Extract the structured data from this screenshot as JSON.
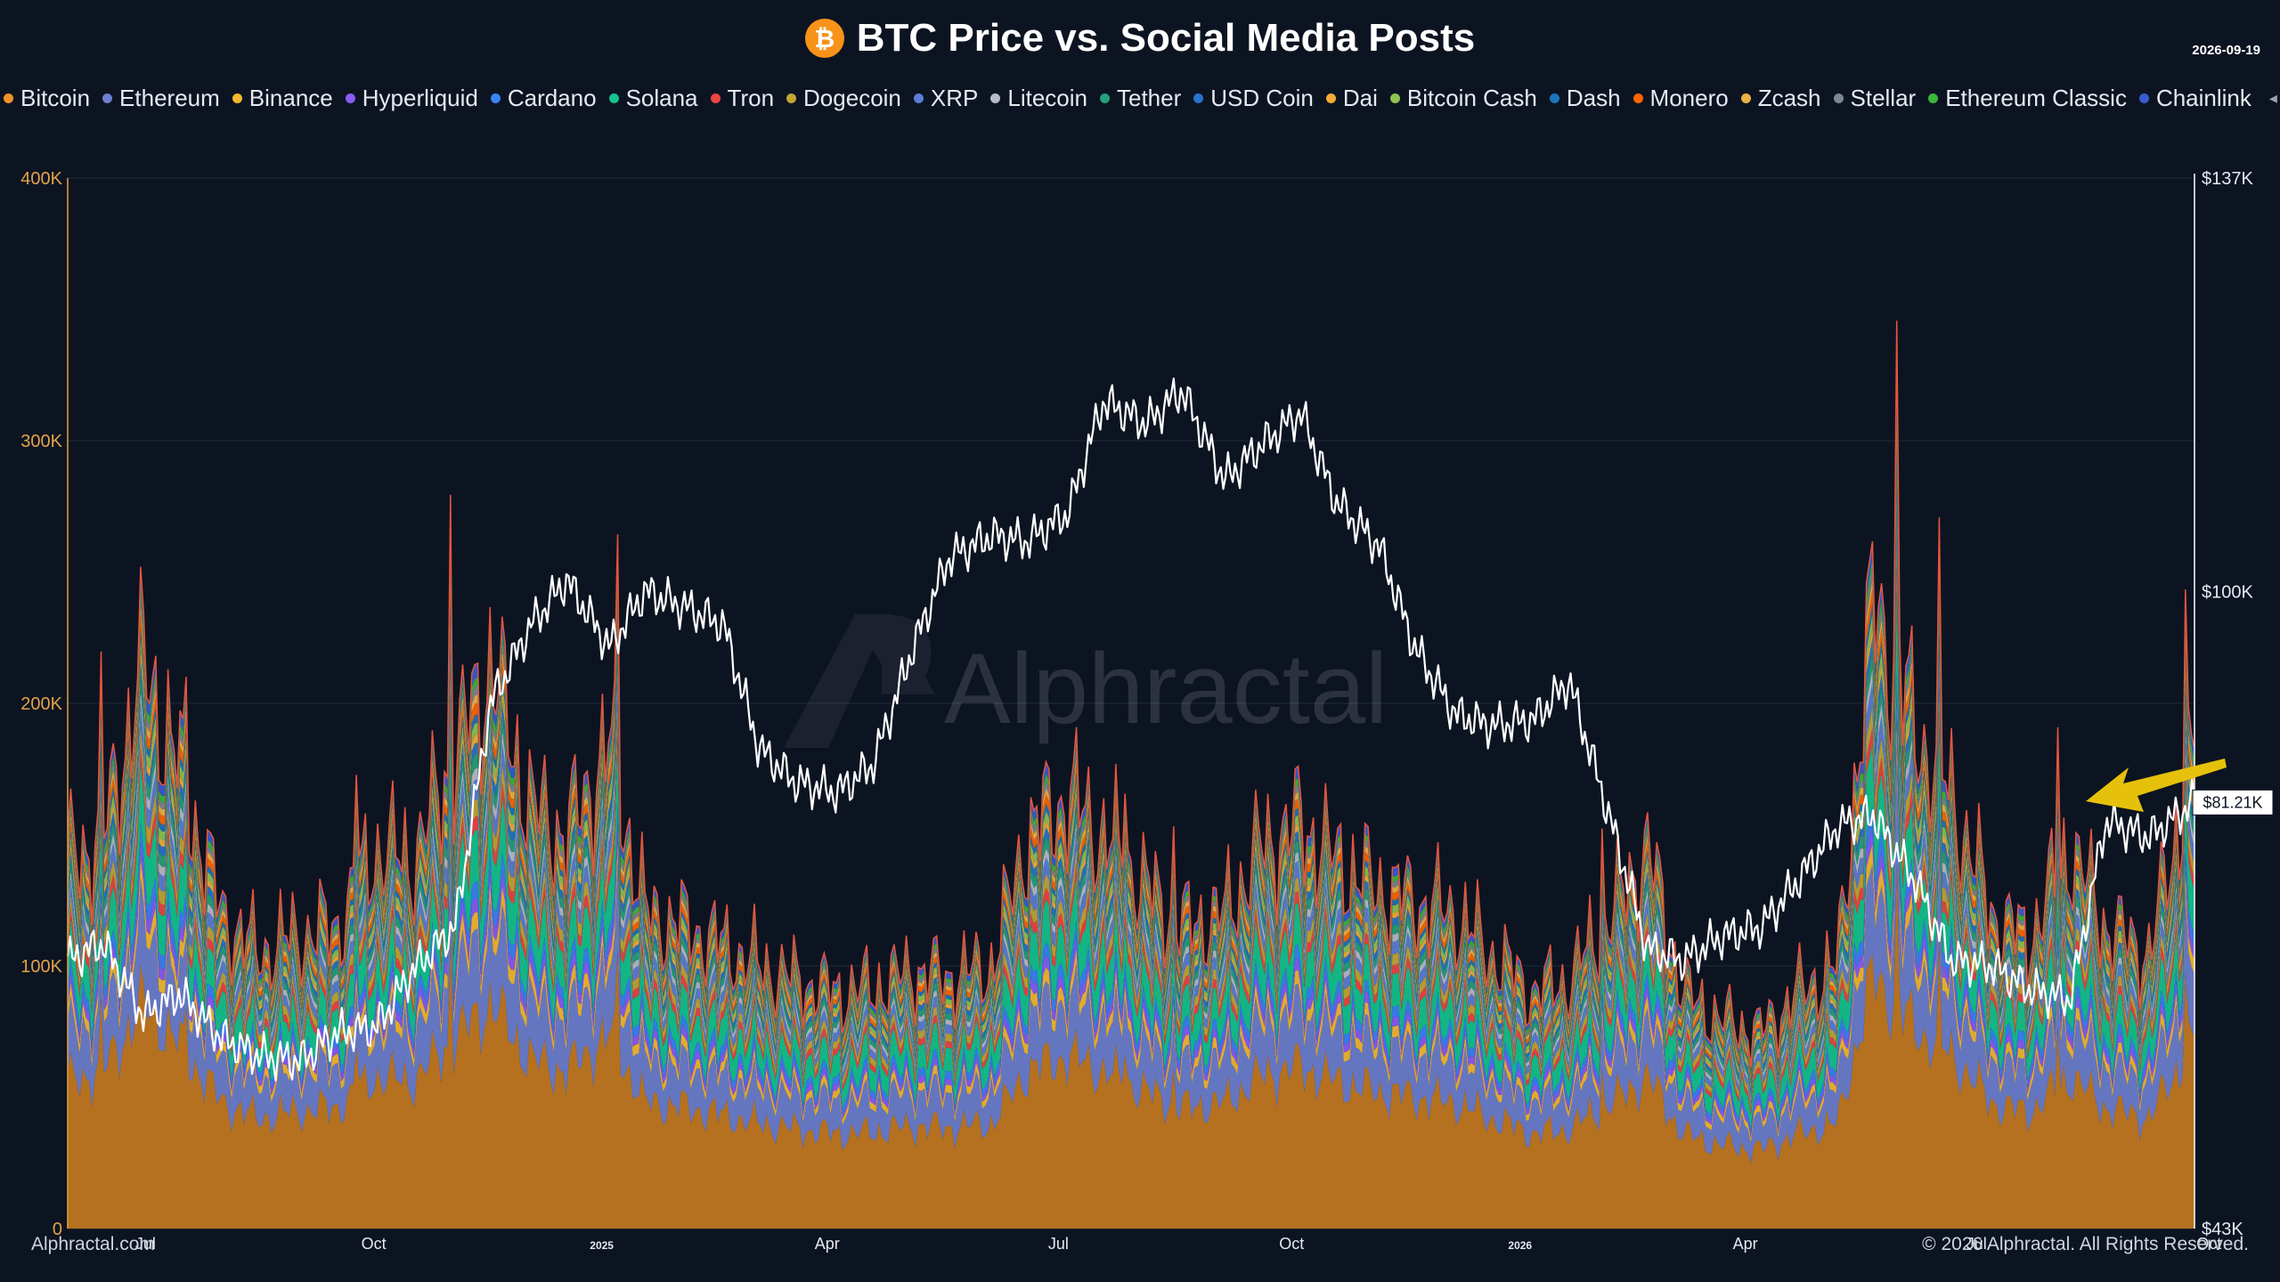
{
  "header": {
    "title": "BTC Price vs. Social Media Posts",
    "logo_symbol": "₿",
    "date": "2026-09-19"
  },
  "legend": [
    {
      "name": "Bitcoin",
      "color": "#f0922b"
    },
    {
      "name": "Ethereum",
      "color": "#6d7fcf"
    },
    {
      "name": "Binance",
      "color": "#f3ba2f"
    },
    {
      "name": "Hyperliquid",
      "color": "#8b5cf6"
    },
    {
      "name": "Cardano",
      "color": "#3b82f6"
    },
    {
      "name": "Solana",
      "color": "#14c38e"
    },
    {
      "name": "Tron",
      "color": "#ef4444"
    },
    {
      "name": "Dogecoin",
      "color": "#c2a633"
    },
    {
      "name": "XRP",
      "color": "#5b7fd6"
    },
    {
      "name": "Litecoin",
      "color": "#b8bcc8"
    },
    {
      "name": "Tether",
      "color": "#26a17b"
    },
    {
      "name": "USD Coin",
      "color": "#2775ca"
    },
    {
      "name": "Dai",
      "color": "#f5ac37"
    },
    {
      "name": "Bitcoin Cash",
      "color": "#8dc351"
    },
    {
      "name": "Dash",
      "color": "#1c75bc"
    },
    {
      "name": "Monero",
      "color": "#ff6600"
    },
    {
      "name": "Zcash",
      "color": "#ecb244"
    },
    {
      "name": "Stellar",
      "color": "#7d8694"
    },
    {
      "name": "Ethereum Classic",
      "color": "#3ab83a"
    },
    {
      "name": "Chainlink",
      "color": "#375bd2"
    }
  ],
  "chart_data": {
    "type": "area",
    "title": "BTC Price vs. Social Media Posts",
    "left_axis": {
      "ticks": [
        "0",
        "100K",
        "200K",
        "300K",
        "400K"
      ],
      "range": [
        0,
        400000
      ]
    },
    "right_axis": {
      "ticks": [
        "$43K",
        "$100K",
        "$137K"
      ],
      "range": [
        43000,
        137000
      ]
    },
    "x_ticks": [
      "Jul",
      "Oct",
      "2025",
      "Apr",
      "Jul",
      "Oct",
      "2026",
      "Apr",
      "Jul",
      "Oct"
    ],
    "x_range": [
      "2024-06-01",
      "2026-09-19"
    ],
    "price_label": "$81.21K",
    "btc_price": {
      "x": [
        "2024-06-01",
        "2024-06-15",
        "2024-07-01",
        "2024-07-15",
        "2024-08-01",
        "2024-08-15",
        "2024-09-01",
        "2024-09-15",
        "2024-10-01",
        "2024-10-15",
        "2024-11-01",
        "2024-11-15",
        "2024-12-01",
        "2024-12-15",
        "2025-01-01",
        "2025-01-15",
        "2025-02-01",
        "2025-02-15",
        "2025-03-01",
        "2025-03-15",
        "2025-04-01",
        "2025-04-15",
        "2025-05-01",
        "2025-05-15",
        "2025-06-01",
        "2025-06-15",
        "2025-07-01",
        "2025-07-15",
        "2025-08-01",
        "2025-08-15",
        "2025-09-01",
        "2025-09-15",
        "2025-10-01",
        "2025-10-15",
        "2025-11-01",
        "2025-11-15",
        "2025-12-01",
        "2025-12-15",
        "2026-01-01",
        "2026-01-15",
        "2026-02-01",
        "2026-02-15",
        "2026-03-01",
        "2026-03-15",
        "2026-04-01",
        "2026-04-15",
        "2026-05-01",
        "2026-05-15",
        "2026-06-01",
        "2026-06-15",
        "2026-07-01",
        "2026-07-15",
        "2026-08-01",
        "2026-08-15",
        "2026-09-01",
        "2026-09-19"
      ],
      "y": [
        67000,
        68500,
        62000,
        64000,
        60000,
        58500,
        58000,
        60500,
        61000,
        66000,
        70000,
        90000,
        97000,
        101000,
        95000,
        100000,
        98500,
        97000,
        86000,
        83000,
        82000,
        84500,
        95000,
        103000,
        105000,
        104500,
        107000,
        117000,
        115000,
        118000,
        110000,
        113000,
        116000,
        108000,
        104000,
        95000,
        89000,
        88000,
        88500,
        92000,
        79000,
        68000,
        67000,
        69000,
        70000,
        74000,
        79000,
        80000,
        74000,
        67000,
        66500,
        64500,
        63500,
        79500,
        78000,
        81210
      ]
    },
    "social_posts": {
      "x": [
        "2024-06-01",
        "2024-06-15",
        "2024-07-01",
        "2024-07-15",
        "2024-08-01",
        "2024-08-15",
        "2024-09-01",
        "2024-09-15",
        "2024-10-01",
        "2024-10-15",
        "2024-11-01",
        "2024-11-15",
        "2024-12-01",
        "2024-12-15",
        "2025-01-01",
        "2025-01-15",
        "2025-02-01",
        "2025-02-15",
        "2025-03-01",
        "2025-03-15",
        "2025-04-01",
        "2025-04-15",
        "2025-05-01",
        "2025-05-15",
        "2025-06-01",
        "2025-06-15",
        "2025-07-01",
        "2025-07-15",
        "2025-08-01",
        "2025-08-15",
        "2025-09-01",
        "2025-09-15",
        "2025-10-01",
        "2025-10-15",
        "2025-11-01",
        "2025-11-15",
        "2025-12-01",
        "2025-12-15",
        "2026-01-01",
        "2026-01-15",
        "2026-02-01",
        "2026-02-15",
        "2026-03-01",
        "2026-03-15",
        "2026-04-01",
        "2026-04-15",
        "2026-05-01",
        "2026-05-15",
        "2026-06-01",
        "2026-06-15",
        "2026-07-01",
        "2026-07-15",
        "2026-08-01",
        "2026-08-15",
        "2026-09-01",
        "2026-09-19"
      ],
      "total": [
        140000,
        150000,
        215000,
        175000,
        120000,
        105000,
        112000,
        115000,
        145000,
        140000,
        180000,
        215000,
        160000,
        150000,
        185000,
        120000,
        115000,
        108000,
        100000,
        95000,
        90000,
        92000,
        98000,
        96000,
        100000,
        150000,
        165000,
        150000,
        130000,
        115000,
        120000,
        145000,
        155000,
        140000,
        130000,
        125000,
        120000,
        105000,
        90000,
        95000,
        120000,
        145000,
        90000,
        80000,
        75000,
        90000,
        100000,
        240000,
        190000,
        165000,
        120000,
        110000,
        145000,
        115000,
        105000,
        180000
      ]
    }
  },
  "watermark": "Alphractal",
  "footer": {
    "left": "Alphractal.com",
    "right": "© 2026 Alphractal. All Rights Reserved."
  }
}
